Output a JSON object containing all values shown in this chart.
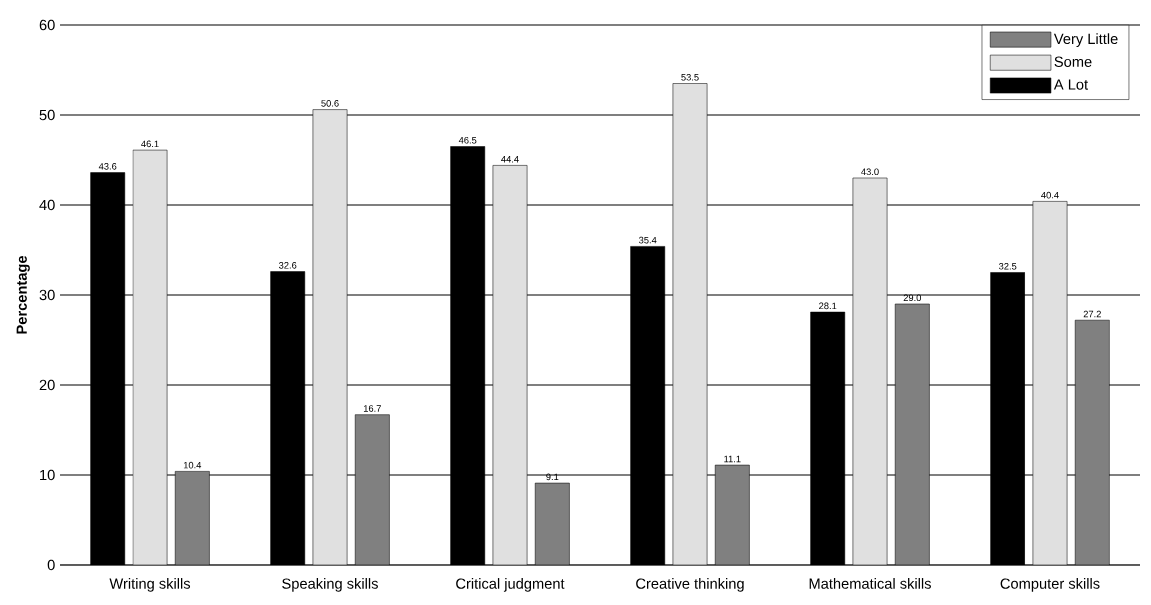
{
  "chart_data": {
    "type": "bar",
    "ylabel": "Percentage",
    "categories": [
      "Writing skills",
      "Speaking skills",
      "Critical judgment",
      "Creative thinking",
      "Mathematical skills",
      "Computer skills"
    ],
    "series": [
      {
        "name": "A Lot",
        "color": "#000000",
        "values": [
          43.6,
          32.6,
          46.5,
          35.4,
          28.1,
          32.5
        ],
        "value_labels": [
          "43.6",
          "32.6",
          "46.5",
          "35.4",
          "28.1",
          "32.5"
        ]
      },
      {
        "name": "Some",
        "color": "#e0e0e0",
        "values": [
          46.1,
          50.6,
          44.4,
          53.5,
          43.0,
          40.4
        ],
        "value_labels": [
          "46.1",
          "50.6",
          "44.4",
          "53.5",
          "43.0",
          "40.4"
        ]
      },
      {
        "name": "Very Little",
        "color": "#808080",
        "values": [
          10.4,
          16.7,
          9.1,
          11.1,
          29.0,
          27.2
        ],
        "value_labels": [
          "10.4",
          "16.7",
          "9.1",
          "11.1",
          "29.0",
          "27.2"
        ]
      }
    ],
    "ylim": [
      0,
      60
    ],
    "yticks": [
      0,
      10,
      20,
      30,
      40,
      50,
      60
    ],
    "grid": "y",
    "legend": "top right"
  }
}
